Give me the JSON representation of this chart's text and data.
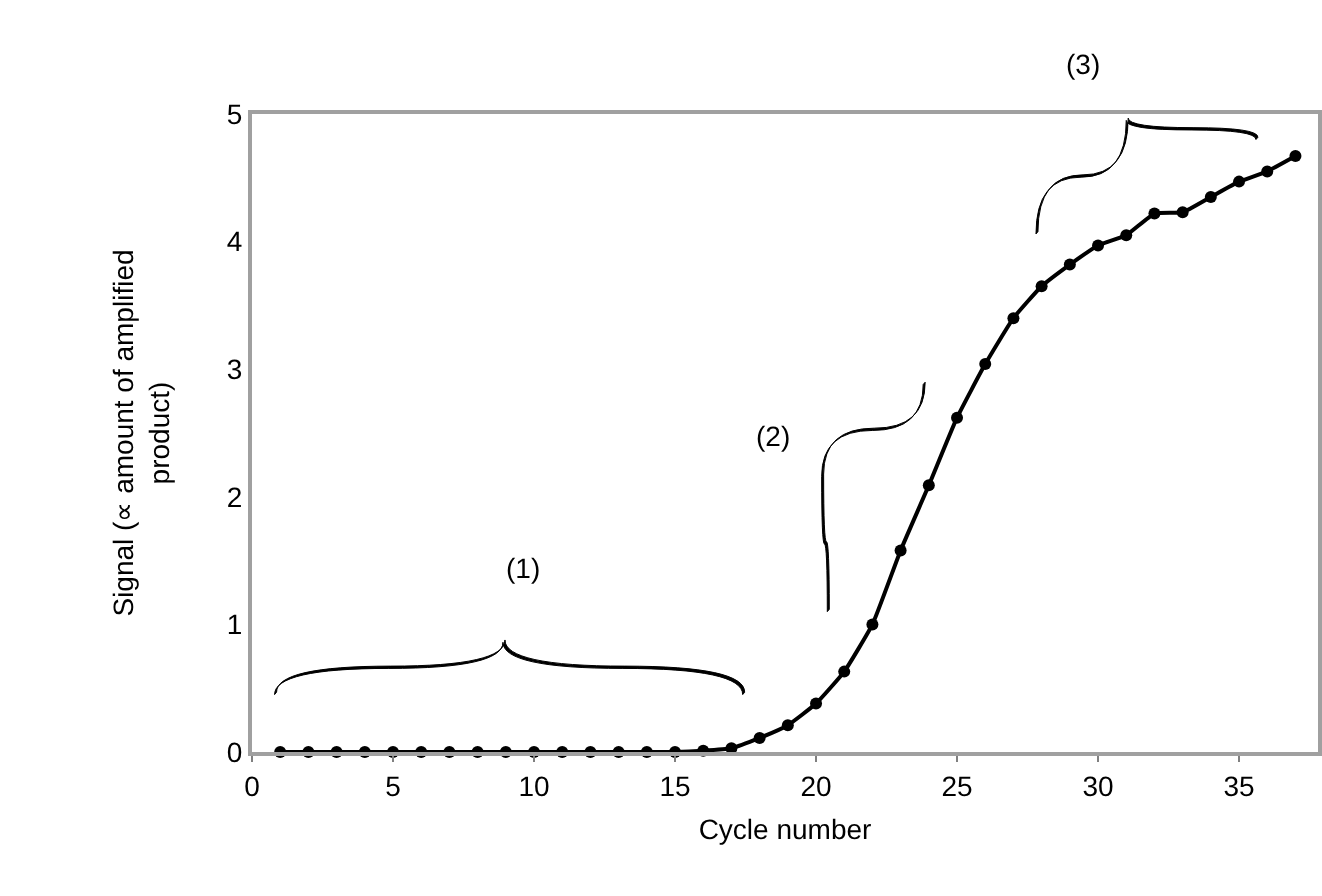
{
  "chart_data": {
    "type": "line",
    "xlabel": "Cycle number",
    "ylabel": "Signal (∝ amount of amplified product)",
    "x": [
      1,
      2,
      3,
      4,
      5,
      6,
      7,
      8,
      9,
      10,
      11,
      12,
      13,
      14,
      15,
      16,
      17,
      18,
      19,
      20,
      21,
      22,
      23,
      24,
      25,
      26,
      27,
      28,
      29,
      30,
      31,
      32,
      33,
      34,
      35,
      36,
      37
    ],
    "series": [
      {
        "color": "#000000",
        "values": [
          0,
          0,
          0,
          0,
          0,
          0,
          0,
          0,
          0,
          0,
          0,
          0,
          0,
          0,
          0,
          0.01,
          0.03,
          0.11,
          0.21,
          0.38,
          0.63,
          1.0,
          1.58,
          2.09,
          2.62,
          3.04,
          3.4,
          3.65,
          3.82,
          3.97,
          4.05,
          4.22,
          4.23,
          4.35,
          4.47,
          4.55,
          4.67
        ]
      }
    ],
    "xlim": [
      0,
      37.8
    ],
    "ylim": [
      0,
      5
    ],
    "xticks": [
      0,
      5,
      10,
      15,
      20,
      25,
      30,
      35
    ],
    "yticks": [
      0,
      1,
      2,
      3,
      4,
      5
    ],
    "marker": "circle",
    "line_style": "solid",
    "annotations": [
      "(1)",
      "(2)",
      "(3)"
    ]
  }
}
